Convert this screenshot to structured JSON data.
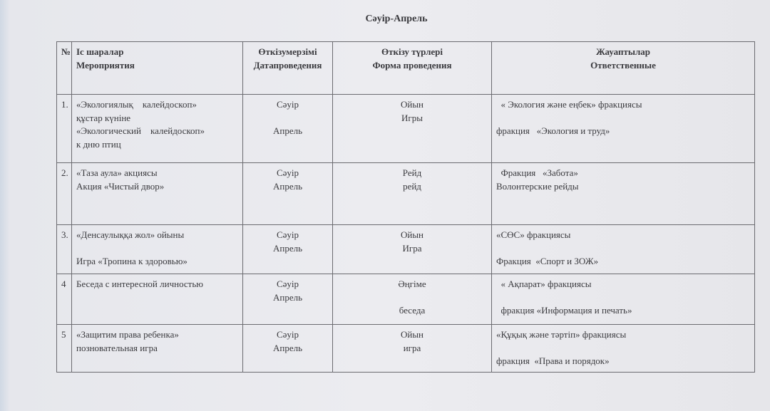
{
  "title": "Сәуір-Апрель",
  "headers": [
    [
      "№"
    ],
    [
      "Іс шаралар",
      "Мероприятия"
    ],
    [
      "Өткізумерзімі",
      "Датапроведения"
    ],
    [
      "Өткізу түрлері",
      "Форма проведения"
    ],
    [
      "Жауаптылар",
      "Ответственные"
    ]
  ],
  "rows": [
    {
      "cells": [
        [
          "1."
        ],
        [
          "«Экологиялық    калейдоскоп»",
          "құстар күніне",
          "«Экологический    калейдоскоп»",
          "к дню птиц"
        ],
        [
          "Сәуір",
          "",
          "Апрель"
        ],
        [
          "Ойын",
          "Игры"
        ],
        [
          "  « Экология және еңбек» фракциясы",
          "",
          "фракция   «Экология и труд»"
        ]
      ]
    },
    {
      "cells": [
        [
          "2."
        ],
        [
          "«Таза аула» акциясы",
          "Акция «Чистый двор»"
        ],
        [
          "Сәуір",
          "Апрель"
        ],
        [
          "Рейд",
          "рейд"
        ],
        [
          "  Фракция   «Забота»",
          "Волонтерские рейды"
        ]
      ]
    },
    {
      "cells": [
        [
          "3."
        ],
        [
          "«Денсаулыққа жол» ойыны",
          "",
          "Игра «Тропина к здоровью»"
        ],
        [
          "Сәуір",
          "Апрель"
        ],
        [
          "Ойын",
          "Игра"
        ],
        [
          "«СӨС» фракциясы",
          "",
          "Фракция  «Спорт и ЗОЖ»"
        ]
      ]
    },
    {
      "cells": [
        [
          "4"
        ],
        [
          "Беседа с интересной личностью"
        ],
        [
          "Сәуір",
          "Апрель"
        ],
        [
          "Әңгіме",
          "",
          "беседа"
        ],
        [
          "  « Ақпарат» фракциясы",
          "",
          "  фракция «Информация и печать»"
        ]
      ]
    },
    {
      "cells": [
        [
          "5"
        ],
        [
          "«Защитим права ребенка»",
          "позновательная игра"
        ],
        [
          "Сәуір",
          "Апрель"
        ],
        [
          "Ойын",
          "игра"
        ],
        [
          "«Құқық және тәртіп» фракциясы",
          "",
          "фракция  «Права и порядок»"
        ]
      ]
    }
  ]
}
